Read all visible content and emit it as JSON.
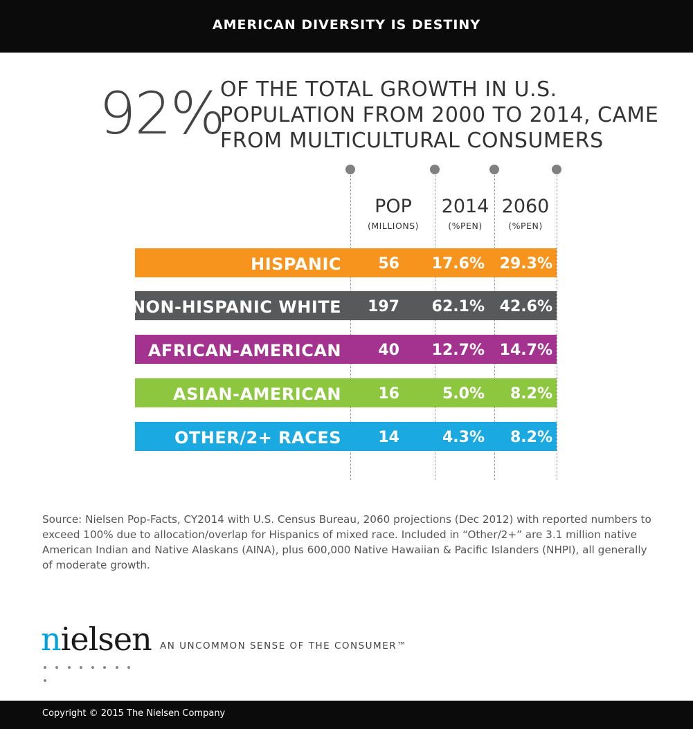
{
  "header": {
    "title": "AMERICAN DIVERSITY IS DESTINY"
  },
  "headline": {
    "stat": "92%",
    "lines": [
      "OF THE TOTAL GROWTH IN U.S.",
      "POPULATION FROM 2000 TO 2014, CAME",
      "FROM MULTICULTURAL CONSUMERS"
    ]
  },
  "chart_data": {
    "type": "table",
    "columns": [
      {
        "label": "POP",
        "sublabel": "(MILLIONS)"
      },
      {
        "label": "2014",
        "sublabel": "(%PEN)"
      },
      {
        "label": "2060",
        "sublabel": "(%PEN)"
      }
    ],
    "rows": [
      {
        "label": "HISPANIC",
        "color": "#f7941d",
        "pop": "56",
        "pen2014": "17.6%",
        "pen2060": "29.3%"
      },
      {
        "label": "NON-HISPANIC WHITE",
        "color": "#58595b",
        "pop": "197",
        "pen2014": "62.1%",
        "pen2060": "42.6%"
      },
      {
        "label": "AFRICAN-AMERICAN",
        "color": "#a3338f",
        "pop": "40",
        "pen2014": "12.7%",
        "pen2060": "14.7%"
      },
      {
        "label": "ASIAN-AMERICAN",
        "color": "#8dc63f",
        "pop": "16",
        "pen2014": "5.0%",
        "pen2060": "8.2%"
      },
      {
        "label": "OTHER/2+ RACES",
        "color": "#1ba9e1",
        "pop": "14",
        "pen2014": "4.3%",
        "pen2060": "8.2%"
      }
    ]
  },
  "source_note": "Source: Nielsen Pop-Facts, CY2014 with U.S. Census Bureau, 2060 projections (Dec 2012) with reported numbers to exceed 100% due to allocation/overlap for Hispanics of mixed race. Included in “Other/2+” are 3.1 million native American Indian and Native Alaskans (AINA), plus 600,000 Native Hawaiian & Pacific Islanders (NHPI), all generally of moderate growth.",
  "brand": {
    "logo_prefix": "n",
    "logo_rest": "ielsen",
    "tagline": "AN UNCOMMON SENSE OF THE CONSUMER™"
  },
  "footer": {
    "copyright": "Copyright © 2015 The Nielsen Company"
  }
}
